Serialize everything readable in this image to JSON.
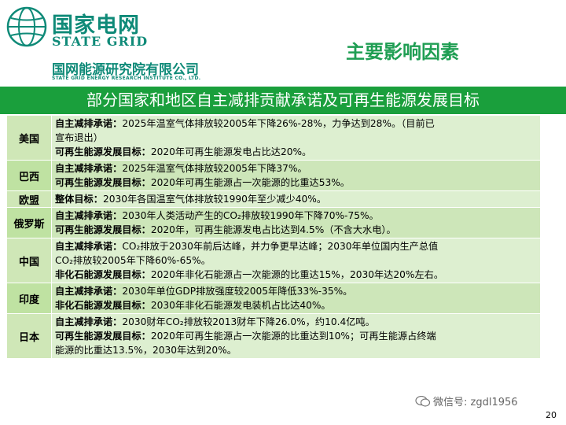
{
  "header": {
    "brand_cn": "国家电网",
    "brand_en": "STATE GRID",
    "institute_cn": "国网能源研究院有限公司",
    "institute_en": "STATE GRID ENERGY RESEARCH INSTITUTE CO., LTD.",
    "page_title": "主要影响因素"
  },
  "banner": {
    "title": "部分国家和地区自主减排贡献承诺及可再生能源发展目标"
  },
  "rows": [
    {
      "country": "美国",
      "lines": [
        {
          "label": "自主减排承诺：",
          "text": "2025年温室气体排放较2005年下降26%-28%，力争达到28%。（目前已"
        },
        {
          "label": "",
          "text": "宣布退出）"
        },
        {
          "label": "可再生能源发展目标：",
          "text": "2020年可再生能源发电占比达20%。"
        }
      ]
    },
    {
      "country": "巴西",
      "lines": [
        {
          "label": "自主减排承诺：",
          "text": "2025年温室气体排放较2005年下降37%。"
        },
        {
          "label": "可再生能源发展目标：",
          "text": "2020年可再生能源占一次能源的比重达53%。"
        }
      ]
    },
    {
      "country": "欧盟",
      "lines": [
        {
          "label": "整体目标：",
          "text": "2030年各国温室气体排放较1990年至少减少40%。"
        }
      ]
    },
    {
      "country": "俄罗斯",
      "lines": [
        {
          "label": "自主减排承诺：",
          "text": "2030年人类活动产生的CO₂排放较1990年下降70%-75%。"
        },
        {
          "label": "可再生能源发展目标：",
          "text": "2020年，可再生能源发电占比达到4.5%（不含大水电）。"
        }
      ]
    },
    {
      "country": "中国",
      "lines": [
        {
          "label": "自主减排承诺：",
          "text": "CO₂排放于2030年前后达峰，并力争更早达峰；2030年单位国内生产总值"
        },
        {
          "label": "",
          "text": "CO₂排放较2005年下降60%-65%。"
        },
        {
          "label": "非化石能源发展目标：",
          "text": "2020年非化石能源占一次能源的比重达15%，2030年达20%左右。"
        }
      ]
    },
    {
      "country": "印度",
      "lines": [
        {
          "label": "自主减排承诺：",
          "text": "2030年单位GDP排放强度较2005年降低33%-35%。"
        },
        {
          "label": "非化石能源发展目标：",
          "text": "2030年非化石能源发电装机占比达40%。"
        }
      ]
    },
    {
      "country": "日本",
      "lines": [
        {
          "label": "自主减排承诺：",
          "text": "2030财年CO₂排放较2013财年下降26.0%，约10.4亿吨。"
        },
        {
          "label": "可再生能源发展目标：",
          "text": "2020年可再生能源占一次能源的比重达到10%；可再生能源占终端"
        },
        {
          "label": "",
          "text": "能源的比重达13.5%，2030年达到20%。"
        }
      ]
    }
  ],
  "watermark": {
    "text": "微信号: zgdl1956"
  },
  "page_number": "20"
}
